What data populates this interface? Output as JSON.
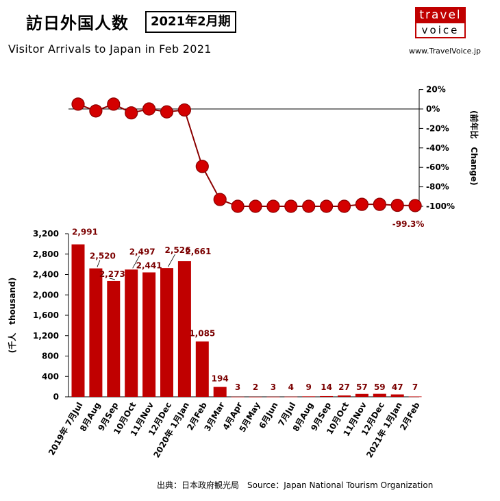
{
  "header": {
    "title_jp": "訪日外国人数",
    "period": "2021年2月期",
    "title_en": "Visitor Arrivals to Japan in Feb 2021",
    "logo_top": "travel",
    "logo_bottom": "voice",
    "website": "www.TravelVoice.jp"
  },
  "footer": {
    "source": "出典：日本政府観光局　Source：Japan  National Tourism  Organization"
  },
  "colors": {
    "bar": "#c00000",
    "dot": "#d40000",
    "line": "#8b0000",
    "label": "#7b0000"
  },
  "chart_data": [
    {
      "type": "line",
      "ylabel": "(前年比　Change)",
      "ylim": [
        -100,
        20
      ],
      "yticks": [
        20,
        0,
        -20,
        -40,
        -60,
        -80,
        -100
      ],
      "ytick_labels": [
        "20%",
        "0%",
        "-20%",
        "-40%",
        "-60%",
        "-80%",
        "-100%"
      ],
      "values": [
        5,
        -2,
        5,
        -4,
        0,
        -3,
        -1,
        -59,
        -93,
        -100,
        -100,
        -100,
        -100,
        -100,
        -100,
        -100,
        -98,
        -98,
        -99,
        -99.3
      ],
      "annotation": "-99.3%"
    },
    {
      "type": "bar",
      "ylabel": "(千人　thousand)",
      "ylim": [
        0,
        3200
      ],
      "yticks": [
        0,
        400,
        800,
        1200,
        1600,
        2000,
        2400,
        2800,
        3200
      ],
      "ytick_labels": [
        "0",
        "400",
        "800",
        "1,200",
        "1,600",
        "2,000",
        "2,400",
        "2,800",
        "3,200"
      ],
      "categories": [
        "2019年 7月Jul",
        "8月Aug",
        "9月Sep",
        "10月Oct",
        "11月Nov",
        "12月Dec",
        "2020年 1月Jan",
        "2月Feb",
        "3月Mar",
        "4月Apr",
        "5月May",
        "6月Jun",
        "7月Jul",
        "8月Aug",
        "9月Sep",
        "10月Oct",
        "11月Nov",
        "12月Dec",
        "2021年 1月Jan",
        "2月Feb"
      ],
      "values": [
        2991,
        2520,
        2273,
        2497,
        2441,
        2526,
        2661,
        1085,
        194,
        3,
        2,
        3,
        4,
        9,
        14,
        27,
        57,
        59,
        47,
        7
      ],
      "value_labels": [
        "2,991",
        "2,520",
        "2,273",
        "2,497",
        "2,441",
        "2,526",
        "2,661",
        "1,085",
        "194",
        "3",
        "2",
        "3",
        "4",
        "9",
        "14",
        "27",
        "57",
        "59",
        "47",
        "7"
      ]
    }
  ]
}
